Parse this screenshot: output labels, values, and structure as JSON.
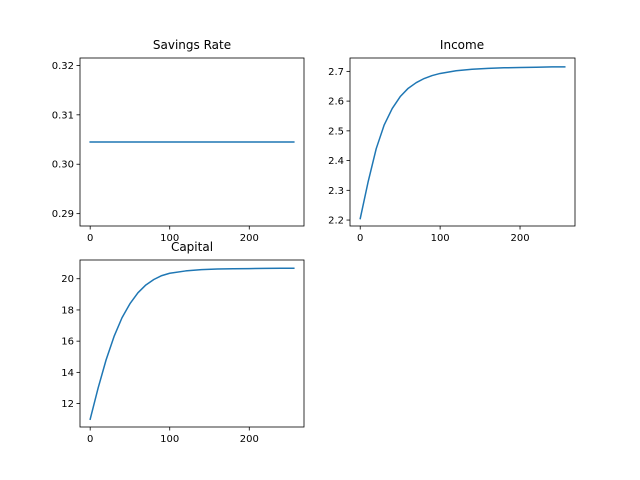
{
  "chart_data": [
    {
      "type": "line",
      "title": "Savings Rate",
      "xlabel": "",
      "ylabel": "",
      "xlim": [
        -12.8,
        268.8
      ],
      "ylim": [
        0.2875,
        0.3215
      ],
      "xticks": [
        0,
        100,
        200
      ],
      "yticks": [
        0.29,
        0.3,
        0.31,
        0.32
      ],
      "ytick_decimals": 2,
      "line_color": "#1f77b4",
      "series": [
        {
          "x": [
            0,
            256
          ],
          "y": [
            0.3045,
            0.3045
          ]
        }
      ]
    },
    {
      "type": "line",
      "title": "Income",
      "xlabel": "",
      "ylabel": "",
      "xlim": [
        -12.8,
        268.8
      ],
      "ylim": [
        2.18,
        2.745
      ],
      "xticks": [
        0,
        100,
        200
      ],
      "yticks": [
        2.2,
        2.3,
        2.4,
        2.5,
        2.6,
        2.7
      ],
      "ytick_decimals": 1,
      "line_color": "#1f77b4",
      "series": [
        {
          "x": [
            0,
            10,
            20,
            30,
            40,
            50,
            60,
            70,
            80,
            90,
            100,
            120,
            140,
            160,
            180,
            200,
            220,
            240,
            256
          ],
          "y": [
            2.205,
            2.33,
            2.44,
            2.52,
            2.575,
            2.615,
            2.643,
            2.662,
            2.676,
            2.686,
            2.693,
            2.702,
            2.707,
            2.71,
            2.712,
            2.713,
            2.714,
            2.715,
            2.715
          ]
        }
      ]
    },
    {
      "type": "line",
      "title": "Capital",
      "xlabel": "",
      "ylabel": "",
      "xlim": [
        -12.8,
        268.8
      ],
      "ylim": [
        10.5,
        21.2
      ],
      "xticks": [
        0,
        100,
        200
      ],
      "yticks": [
        12,
        14,
        16,
        18,
        20
      ],
      "ytick_decimals": 0,
      "line_color": "#1f77b4",
      "series": [
        {
          "x": [
            0,
            10,
            20,
            30,
            40,
            50,
            60,
            70,
            80,
            90,
            100,
            120,
            140,
            160,
            180,
            200,
            220,
            240,
            256
          ],
          "y": [
            11.0,
            13.0,
            14.8,
            16.3,
            17.5,
            18.4,
            19.1,
            19.6,
            19.95,
            20.2,
            20.35,
            20.5,
            20.58,
            20.62,
            20.64,
            20.65,
            20.66,
            20.67,
            20.67
          ]
        }
      ]
    }
  ]
}
